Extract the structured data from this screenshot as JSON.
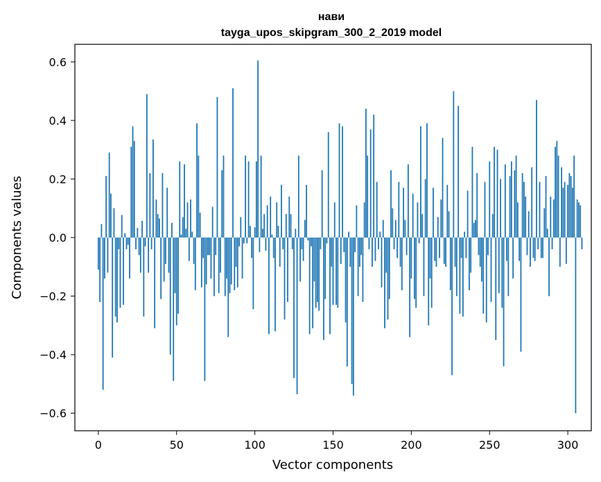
{
  "chart_data": {
    "type": "bar",
    "title": "нави",
    "subtitle": "tayga_upos_skipgram_300_2_2019 model",
    "xlabel": "Vector components",
    "ylabel": "Components values",
    "xlim": [
      -15,
      315
    ],
    "ylim": [
      -0.66,
      0.66
    ],
    "xticks": [
      0,
      50,
      100,
      150,
      200,
      250,
      300
    ],
    "yticks": [
      -0.6,
      -0.4,
      -0.2,
      0.0,
      0.2,
      0.4,
      0.6
    ],
    "ytick_labels": [
      "−0.6",
      "−0.4",
      "−0.2",
      "0.0",
      "0.2",
      "0.4",
      "0.6"
    ],
    "grid": false,
    "bar_color": "#1f77b4",
    "values": [
      -0.11,
      -0.22,
      0.046,
      -0.52,
      -0.14,
      0.21,
      -0.12,
      0.29,
      0.15,
      -0.41,
      0.1,
      -0.27,
      -0.29,
      -0.04,
      -0.24,
      0.077,
      -0.23,
      0.015,
      -0.04,
      -0.025,
      -0.14,
      0.31,
      0.38,
      0.33,
      -0.04,
      0.033,
      -0.06,
      -0.12,
      0.057,
      -0.27,
      -0.03,
      0.49,
      -0.12,
      0.22,
      -0.04,
      0.335,
      -0.31,
      0.13,
      0.08,
      0.065,
      -0.21,
      0.22,
      -0.15,
      -0.09,
      0.17,
      -0.12,
      -0.4,
      0.05,
      -0.49,
      -0.19,
      -0.3,
      -0.26,
      0.26,
      0.01,
      0.07,
      0.25,
      0.03,
      0.12,
      -0.08,
      0.13,
      0.02,
      -0.09,
      -0.18,
      0.39,
      0.28,
      0.085,
      -0.17,
      -0.07,
      -0.49,
      -0.16,
      -0.06,
      -0.06,
      -0.14,
      0.105,
      -0.2,
      -0.06,
      0.48,
      -0.19,
      -0.12,
      0.23,
      0.28,
      -0.2,
      -0.14,
      -0.34,
      -0.19,
      -0.16,
      0.51,
      -0.18,
      -0.1,
      -0.17,
      -0.03,
      0.07,
      -0.14,
      -0.02,
      0.28,
      -0.02,
      0.26,
      0.04,
      -0.07,
      -0.245,
      0.035,
      0.26,
      0.605,
      -0.05,
      0.28,
      0.03,
      0.08,
      -0.045,
      0.11,
      -0.33,
      0.14,
      0.01,
      -0.07,
      -0.32,
      0.12,
      0.04,
      -0.1,
      0.18,
      -0.04,
      -0.28,
      0.08,
      -0.22,
      0.14,
      0.08,
      -0.04,
      -0.48,
      0.03,
      -0.535,
      0.28,
      -0.15,
      -0.04,
      -0.08,
      0.06,
      0.18,
      -0.01,
      -0.33,
      -0.03,
      -0.31,
      -0.15,
      -0.24,
      -0.22,
      -0.25,
      -0.04,
      0.23,
      -0.35,
      -0.21,
      -0.02,
      0.36,
      -0.33,
      -0.1,
      -0.23,
      0.12,
      -0.23,
      -0.24,
      0.39,
      -0.09,
      0.38,
      -0.05,
      -0.29,
      -0.44,
      0.02,
      -0.1,
      -0.5,
      -0.54,
      -0.05,
      0.11,
      -0.2,
      -0.1,
      -0.06,
      -0.22,
      0.12,
      0.44,
      0.28,
      -0.04,
      0.37,
      -0.1,
      0.42,
      -0.08,
      0.19,
      -0.04,
      0.02,
      -0.17,
      0.06,
      -0.31,
      -0.12,
      -0.28,
      -0.21,
      0.23,
      0.1,
      -0.04,
      0.06,
      -0.07,
      0.19,
      -0.1,
      -0.18,
      0.17,
      0.06,
      -0.06,
      0.25,
      -0.34,
      -0.14,
      0.15,
      -0.21,
      -0.24,
      0.12,
      -0.02,
      0.38,
      0.08,
      -0.2,
      0.2,
      0.39,
      -0.3,
      -0.14,
      -0.24,
      0.17,
      -0.08,
      -0.1,
      0.07,
      -0.07,
      0.13,
      0.34,
      -0.09,
      -0.1,
      0.18,
      0.09,
      -0.18,
      -0.47,
      0.5,
      -0.1,
      -0.2,
      0.45,
      -0.26,
      -0.07,
      -0.27,
      0.02,
      -0.07,
      0.16,
      -0.18,
      -0.12,
      0.31,
      0.05,
      0.06,
      0.22,
      -0.06,
      -0.1,
      -0.15,
      -0.26,
      0.19,
      -0.29,
      -0.06,
      0.26,
      -0.22,
      0.08,
      0.31,
      -0.35,
      0.3,
      -0.19,
      0.2,
      -0.24,
      -0.44,
      0.25,
      -0.08,
      -0.2,
      0.21,
      0.26,
      -0.14,
      0.23,
      0.28,
      0.12,
      -0.08,
      -0.39,
      0.22,
      0.19,
      0.14,
      -0.06,
      0.09,
      -0.1,
      0.24,
      -0.07,
      -0.08,
      0.47,
      -0.04,
      0.19,
      -0.07,
      -0.07,
      0.1,
      0.21,
      0.03,
      -0.2,
      0.14,
      -0.04,
      0.13,
      0.31,
      0.33,
      0.28,
      -0.1,
      0.24,
      0.17,
      0.19,
      -0.09,
      0.18,
      0.22,
      0.21,
      0.17,
      0.28,
      -0.6,
      0.13,
      0.12,
      0.11,
      -0.04
    ]
  }
}
